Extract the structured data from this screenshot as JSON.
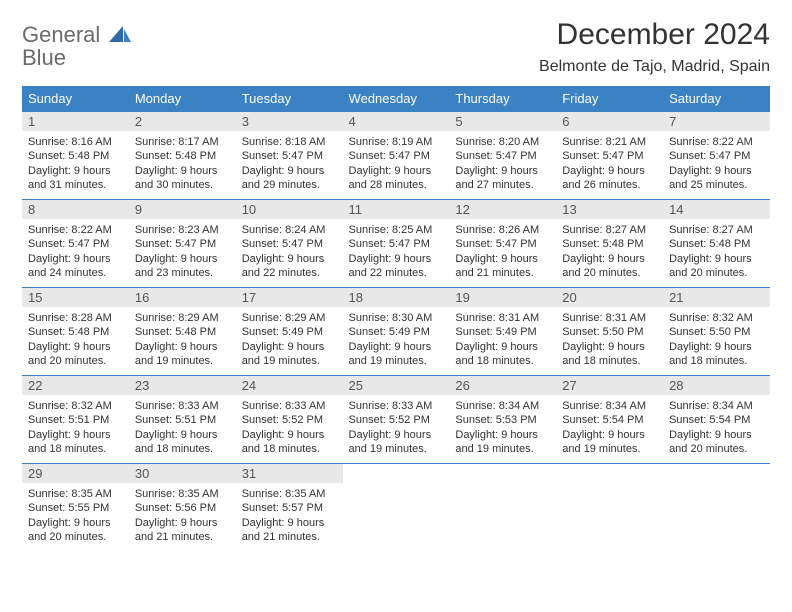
{
  "logo": {
    "text_a": "General",
    "text_b": "Blue"
  },
  "title": "December 2024",
  "location": "Belmonte de Tajo, Madrid, Spain",
  "colors": {
    "header_bg": "#3b82c4",
    "header_text": "#ffffff",
    "daynum_bg": "#e8e8e8",
    "border": "#3b82c4",
    "body_text": "#333333",
    "logo_gray": "#6b6b6b",
    "logo_blue": "#3b82c4"
  },
  "weekdays": [
    "Sunday",
    "Monday",
    "Tuesday",
    "Wednesday",
    "Thursday",
    "Friday",
    "Saturday"
  ],
  "weeks": [
    [
      {
        "d": "1",
        "sr": "Sunrise: 8:16 AM",
        "ss": "Sunset: 5:48 PM",
        "dl1": "Daylight: 9 hours",
        "dl2": "and 31 minutes."
      },
      {
        "d": "2",
        "sr": "Sunrise: 8:17 AM",
        "ss": "Sunset: 5:48 PM",
        "dl1": "Daylight: 9 hours",
        "dl2": "and 30 minutes."
      },
      {
        "d": "3",
        "sr": "Sunrise: 8:18 AM",
        "ss": "Sunset: 5:47 PM",
        "dl1": "Daylight: 9 hours",
        "dl2": "and 29 minutes."
      },
      {
        "d": "4",
        "sr": "Sunrise: 8:19 AM",
        "ss": "Sunset: 5:47 PM",
        "dl1": "Daylight: 9 hours",
        "dl2": "and 28 minutes."
      },
      {
        "d": "5",
        "sr": "Sunrise: 8:20 AM",
        "ss": "Sunset: 5:47 PM",
        "dl1": "Daylight: 9 hours",
        "dl2": "and 27 minutes."
      },
      {
        "d": "6",
        "sr": "Sunrise: 8:21 AM",
        "ss": "Sunset: 5:47 PM",
        "dl1": "Daylight: 9 hours",
        "dl2": "and 26 minutes."
      },
      {
        "d": "7",
        "sr": "Sunrise: 8:22 AM",
        "ss": "Sunset: 5:47 PM",
        "dl1": "Daylight: 9 hours",
        "dl2": "and 25 minutes."
      }
    ],
    [
      {
        "d": "8",
        "sr": "Sunrise: 8:22 AM",
        "ss": "Sunset: 5:47 PM",
        "dl1": "Daylight: 9 hours",
        "dl2": "and 24 minutes."
      },
      {
        "d": "9",
        "sr": "Sunrise: 8:23 AM",
        "ss": "Sunset: 5:47 PM",
        "dl1": "Daylight: 9 hours",
        "dl2": "and 23 minutes."
      },
      {
        "d": "10",
        "sr": "Sunrise: 8:24 AM",
        "ss": "Sunset: 5:47 PM",
        "dl1": "Daylight: 9 hours",
        "dl2": "and 22 minutes."
      },
      {
        "d": "11",
        "sr": "Sunrise: 8:25 AM",
        "ss": "Sunset: 5:47 PM",
        "dl1": "Daylight: 9 hours",
        "dl2": "and 22 minutes."
      },
      {
        "d": "12",
        "sr": "Sunrise: 8:26 AM",
        "ss": "Sunset: 5:47 PM",
        "dl1": "Daylight: 9 hours",
        "dl2": "and 21 minutes."
      },
      {
        "d": "13",
        "sr": "Sunrise: 8:27 AM",
        "ss": "Sunset: 5:48 PM",
        "dl1": "Daylight: 9 hours",
        "dl2": "and 20 minutes."
      },
      {
        "d": "14",
        "sr": "Sunrise: 8:27 AM",
        "ss": "Sunset: 5:48 PM",
        "dl1": "Daylight: 9 hours",
        "dl2": "and 20 minutes."
      }
    ],
    [
      {
        "d": "15",
        "sr": "Sunrise: 8:28 AM",
        "ss": "Sunset: 5:48 PM",
        "dl1": "Daylight: 9 hours",
        "dl2": "and 20 minutes."
      },
      {
        "d": "16",
        "sr": "Sunrise: 8:29 AM",
        "ss": "Sunset: 5:48 PM",
        "dl1": "Daylight: 9 hours",
        "dl2": "and 19 minutes."
      },
      {
        "d": "17",
        "sr": "Sunrise: 8:29 AM",
        "ss": "Sunset: 5:49 PM",
        "dl1": "Daylight: 9 hours",
        "dl2": "and 19 minutes."
      },
      {
        "d": "18",
        "sr": "Sunrise: 8:30 AM",
        "ss": "Sunset: 5:49 PM",
        "dl1": "Daylight: 9 hours",
        "dl2": "and 19 minutes."
      },
      {
        "d": "19",
        "sr": "Sunrise: 8:31 AM",
        "ss": "Sunset: 5:49 PM",
        "dl1": "Daylight: 9 hours",
        "dl2": "and 18 minutes."
      },
      {
        "d": "20",
        "sr": "Sunrise: 8:31 AM",
        "ss": "Sunset: 5:50 PM",
        "dl1": "Daylight: 9 hours",
        "dl2": "and 18 minutes."
      },
      {
        "d": "21",
        "sr": "Sunrise: 8:32 AM",
        "ss": "Sunset: 5:50 PM",
        "dl1": "Daylight: 9 hours",
        "dl2": "and 18 minutes."
      }
    ],
    [
      {
        "d": "22",
        "sr": "Sunrise: 8:32 AM",
        "ss": "Sunset: 5:51 PM",
        "dl1": "Daylight: 9 hours",
        "dl2": "and 18 minutes."
      },
      {
        "d": "23",
        "sr": "Sunrise: 8:33 AM",
        "ss": "Sunset: 5:51 PM",
        "dl1": "Daylight: 9 hours",
        "dl2": "and 18 minutes."
      },
      {
        "d": "24",
        "sr": "Sunrise: 8:33 AM",
        "ss": "Sunset: 5:52 PM",
        "dl1": "Daylight: 9 hours",
        "dl2": "and 18 minutes."
      },
      {
        "d": "25",
        "sr": "Sunrise: 8:33 AM",
        "ss": "Sunset: 5:52 PM",
        "dl1": "Daylight: 9 hours",
        "dl2": "and 19 minutes."
      },
      {
        "d": "26",
        "sr": "Sunrise: 8:34 AM",
        "ss": "Sunset: 5:53 PM",
        "dl1": "Daylight: 9 hours",
        "dl2": "and 19 minutes."
      },
      {
        "d": "27",
        "sr": "Sunrise: 8:34 AM",
        "ss": "Sunset: 5:54 PM",
        "dl1": "Daylight: 9 hours",
        "dl2": "and 19 minutes."
      },
      {
        "d": "28",
        "sr": "Sunrise: 8:34 AM",
        "ss": "Sunset: 5:54 PM",
        "dl1": "Daylight: 9 hours",
        "dl2": "and 20 minutes."
      }
    ],
    [
      {
        "d": "29",
        "sr": "Sunrise: 8:35 AM",
        "ss": "Sunset: 5:55 PM",
        "dl1": "Daylight: 9 hours",
        "dl2": "and 20 minutes."
      },
      {
        "d": "30",
        "sr": "Sunrise: 8:35 AM",
        "ss": "Sunset: 5:56 PM",
        "dl1": "Daylight: 9 hours",
        "dl2": "and 21 minutes."
      },
      {
        "d": "31",
        "sr": "Sunrise: 8:35 AM",
        "ss": "Sunset: 5:57 PM",
        "dl1": "Daylight: 9 hours",
        "dl2": "and 21 minutes."
      },
      null,
      null,
      null,
      null
    ]
  ]
}
